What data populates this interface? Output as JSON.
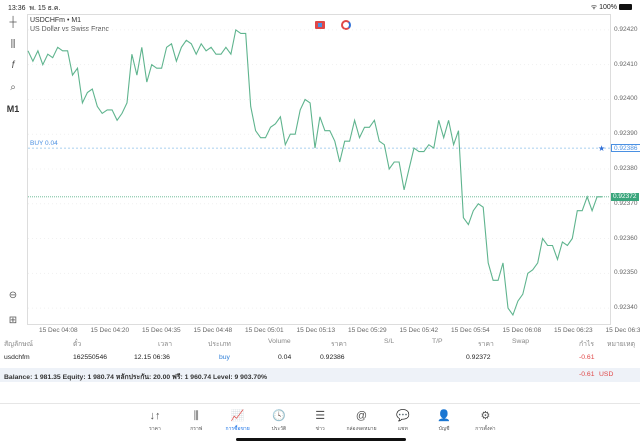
{
  "status_bar": {
    "time": "13:36",
    "date": "พ. 15 ธ.ค.",
    "battery": "100%"
  },
  "chart": {
    "symbol": "USDCHFm • M1",
    "description": "US Dollar vs Swiss Franc",
    "timeframe": "M1",
    "y_ticks": [
      "0.92420",
      "0.92410",
      "0.92400",
      "0.92390",
      "0.92380",
      "0.92370",
      "0.92360",
      "0.92350",
      "0.92340"
    ],
    "x_ticks": [
      "15 Dec 04:08",
      "15 Dec 04:20",
      "15 Dec 04:35",
      "15 Dec 04:48",
      "15 Dec 05:01",
      "15 Dec 05:13",
      "15 Dec 05:29",
      "15 Dec 05:42",
      "15 Dec 05:54",
      "15 Dec 06:08",
      "15 Dec 06:23",
      "15 Dec 06:3"
    ],
    "order_label": "BUY 0.04",
    "order_price": "0.92386",
    "current_price": "0.92372",
    "line_color": "#5fb48e",
    "order_color": "#4a90e2",
    "ylim": [
      0.92336,
      0.92424
    ],
    "prices": [
      0.92414,
      0.92411,
      0.92414,
      0.9241,
      0.92413,
      0.92412,
      0.92415,
      0.92414,
      0.92414,
      0.92407,
      0.92409,
      0.92399,
      0.92402,
      0.92403,
      0.92398,
      0.92396,
      0.92397,
      0.92397,
      0.92394,
      0.92396,
      0.92399,
      0.92413,
      0.92407,
      0.92415,
      0.92405,
      0.9241,
      0.92409,
      0.92409,
      0.92415,
      0.92416,
      0.92411,
      0.92415,
      0.92417,
      0.92416,
      0.92413,
      0.92416,
      0.92414,
      0.92415,
      0.92413,
      0.92413,
      0.92415,
      0.92413,
      0.9242,
      0.92419,
      0.92419,
      0.92398,
      0.92391,
      0.92389,
      0.92389,
      0.92392,
      0.92393,
      0.92395,
      0.92387,
      0.9239,
      0.9239,
      0.92397,
      0.924,
      0.92399,
      0.92386,
      0.92395,
      0.92391,
      0.92391,
      0.92388,
      0.92382,
      0.92388,
      0.92388,
      0.92394,
      0.92389,
      0.92392,
      0.92392,
      0.92394,
      0.92388,
      0.92387,
      0.9238,
      0.92382,
      0.92382,
      0.92374,
      0.9238,
      0.92386,
      0.92385,
      0.92385,
      0.92387,
      0.92386,
      0.92394,
      0.92389,
      0.92394,
      0.92387,
      0.92391,
      0.92366,
      0.92364,
      0.92368,
      0.9237,
      0.92369,
      0.92353,
      0.92348,
      0.92348,
      0.92353,
      0.9234,
      0.92338,
      0.92342,
      0.92344,
      0.9235,
      0.92351,
      0.92353,
      0.9236,
      0.92358,
      0.92358,
      0.92354,
      0.92359,
      0.92358,
      0.9236,
      0.92368,
      0.92368,
      0.92372,
      0.92368,
      0.92372,
      0.92372
    ]
  },
  "toolbar": {
    "tools": [
      "crosshair-icon",
      "candles-icon",
      "indicator-icon",
      "objects-icon"
    ],
    "timeframe": "M1"
  },
  "table": {
    "headers": [
      "สัญลักษณ์",
      "ตั๋ว",
      "เวลา",
      "ประเภท",
      "Volume",
      "ราคา",
      "S/L",
      "T/P",
      "ราคา",
      "Swap",
      "กำไร",
      "หมายเหตุ"
    ],
    "row": {
      "symbol": "usdchfm",
      "ticket": "162550546",
      "time": "12.15 06:36",
      "type": "buy",
      "volume": "0.04",
      "open_price": "0.92386",
      "sl": "",
      "tp": "",
      "price": "0.92372",
      "swap": "",
      "profit": "-0.61",
      "comment": ""
    },
    "balance": "Balance: 1 981.35 Equity: 1 980.74 หลักประกัน: 20.00 ฟรี: 1 960.74 Level: 9 903.70%",
    "total_profit": "-0.61",
    "currency": "USD"
  },
  "nav": [
    {
      "label": "ราคา",
      "icon": "↓↑"
    },
    {
      "label": "กราฟ",
      "icon": "⫼"
    },
    {
      "label": "การซื้อขาย",
      "icon": "📈",
      "active": true
    },
    {
      "label": "ประวัติ",
      "icon": "🕓"
    },
    {
      "label": "ข่าว",
      "icon": "☰"
    },
    {
      "label": "กล่องจดหมาย",
      "icon": "@"
    },
    {
      "label": "แชท",
      "icon": "💬"
    },
    {
      "label": "บัญชี",
      "icon": "👤"
    },
    {
      "label": "การตั้งค่า",
      "icon": "⚙"
    }
  ]
}
